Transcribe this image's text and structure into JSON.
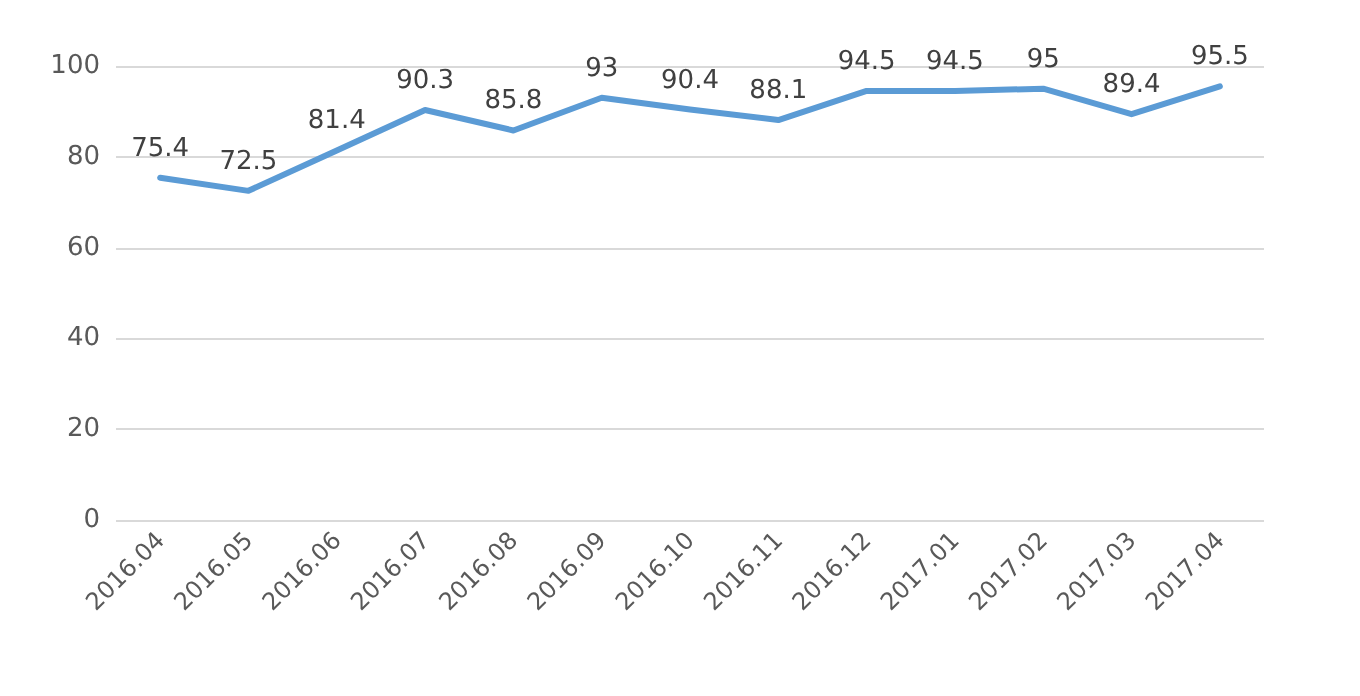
{
  "chart_data": {
    "type": "line",
    "categories": [
      "2016.04",
      "2016.05",
      "2016.06",
      "2016.07",
      "2016.08",
      "2016.09",
      "2016.10",
      "2016.11",
      "2016.12",
      "2017.01",
      "2017.02",
      "2017.03",
      "2017.04"
    ],
    "series": [
      {
        "color": "#5b9bd5",
        "values": [
          75.4,
          72.5,
          81.4,
          90.3,
          85.8,
          93,
          90.4,
          88.1,
          94.5,
          94.5,
          95,
          89.4,
          95.5
        ]
      }
    ],
    "ylim": [
      0,
      100
    ],
    "yticks": [
      0,
      20,
      40,
      60,
      80,
      100
    ],
    "grid": "y",
    "data_labels": true,
    "marker": "none",
    "line_style": "solid"
  }
}
